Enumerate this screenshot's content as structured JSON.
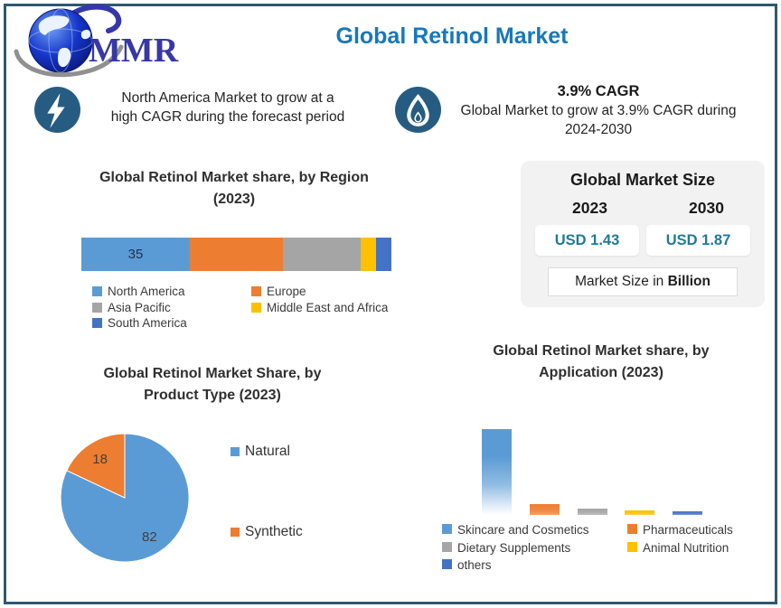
{
  "page": {
    "title": "Global Retinol Market",
    "logo_text": "MMR",
    "frame_color": "#2e5972",
    "accent_blue": "#1878b8",
    "icon_circle_color": "#265c82"
  },
  "callouts": [
    {
      "icon": "lightning-icon",
      "text": "North America Market to grow at a high CAGR during the forecast period",
      "lines": [
        "North America Market to grow at a",
        "high CAGR during the forecast period"
      ]
    },
    {
      "icon": "flame-icon",
      "heading": "3.9% CAGR",
      "text": "Global Market to grow at 3.9% CAGR during 2024-2030",
      "lines": [
        "Global Market to grow at 3.9% CAGR during",
        "2024-2030"
      ]
    }
  ],
  "market_size": {
    "title": "Global Market Size",
    "years": [
      "2023",
      "2030"
    ],
    "values": [
      "USD 1.43",
      "USD 1.87"
    ],
    "footnote_prefix": "Market Size in ",
    "footnote_bold": "Billion",
    "value_color": "#1d7a9e"
  },
  "chart_data": [
    {
      "type": "bar",
      "variant": "stacked-horizontal",
      "title": "Global Retinol Market share, by Region (2023)",
      "title_lines": [
        "Global Retinol Market share, by Region",
        "(2023)"
      ],
      "categories": [
        "North America",
        "Europe",
        "Asia Pacific",
        "Middle East and Africa",
        "South America"
      ],
      "values": [
        35,
        30,
        25,
        5,
        5
      ],
      "data_labels": [
        "35",
        "",
        "",
        "",
        ""
      ],
      "colors": [
        "#5b9bd5",
        "#ed7d31",
        "#a5a5a5",
        "#ffc000",
        "#4472c4"
      ],
      "legend_position": "bottom",
      "legend_columns": 2,
      "grid": false
    },
    {
      "type": "pie",
      "title": "Global Retinol Market Share, by Product Type (2023)",
      "title_lines": [
        "Global Retinol Market Share, by",
        "Product Type (2023)"
      ],
      "categories": [
        "Natural",
        "Synthetic"
      ],
      "values": [
        82,
        18
      ],
      "data_labels": [
        "82",
        "18"
      ],
      "colors": [
        "#5b9bd5",
        "#ed7d31"
      ],
      "legend_position": "right",
      "start_angle_deg": 0,
      "direction": "clockwise"
    },
    {
      "type": "bar",
      "variant": "vertical",
      "title": "Global Retinol Market share, by Application (2023)",
      "title_lines": [
        "Global Retinol Market share, by",
        "Application (2023)"
      ],
      "categories": [
        "Skincare and Cosmetics",
        "Pharmaceuticals",
        "Dietary Supplements",
        "Animal Nutrition",
        "others"
      ],
      "values": [
        76,
        10,
        6,
        4,
        3
      ],
      "data_labels": [
        "",
        "",
        "",
        "",
        ""
      ],
      "colors": [
        "#5b9bd5",
        "#ed7d31",
        "#a5a5a5",
        "#ffc000",
        "#4472c4"
      ],
      "legend_position": "bottom",
      "legend_columns": 2,
      "grid": false
    }
  ]
}
